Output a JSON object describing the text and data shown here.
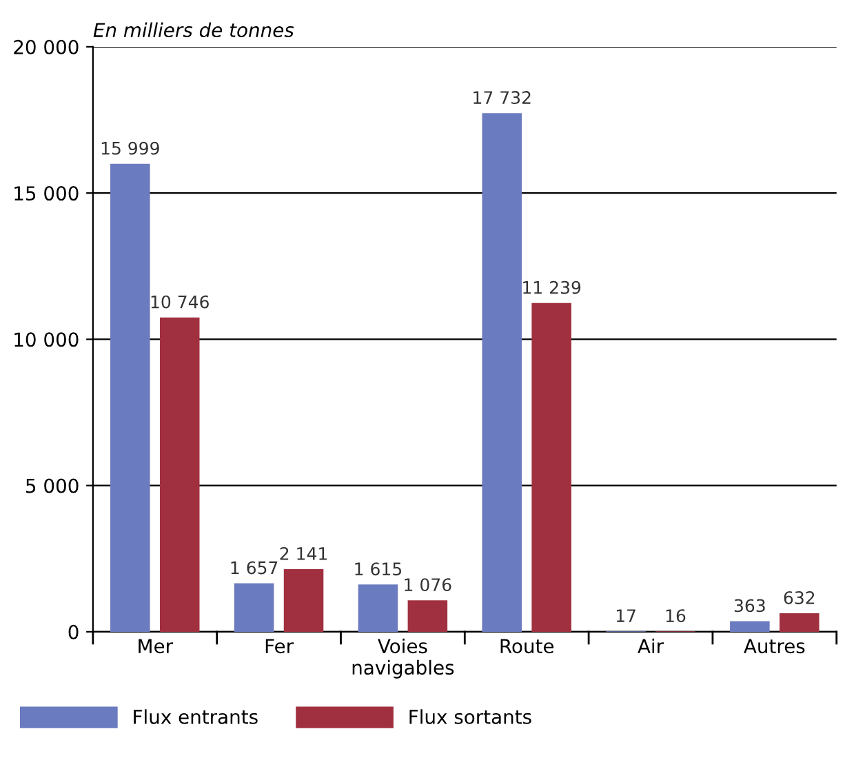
{
  "chart_data": {
    "type": "bar",
    "ylabel": "En milliers de tonnes",
    "categories": [
      "Mer",
      "Fer",
      "Voies\nnavigables",
      "Route",
      "Air",
      "Autres"
    ],
    "series": [
      {
        "name": "Flux entrants",
        "color": "#6a7bbf",
        "values": [
          15999,
          1657,
          1615,
          17732,
          17,
          363
        ],
        "value_labels": [
          "15 999",
          "1 657",
          "1 615",
          "17 732",
          "17",
          "363"
        ]
      },
      {
        "name": "Flux sortants",
        "color": "#a0303f",
        "values": [
          10746,
          2141,
          1076,
          11239,
          16,
          632
        ],
        "value_labels": [
          "10 746",
          "2 141",
          "1 076",
          "11 239",
          "16",
          "632"
        ]
      }
    ],
    "ylim": [
      0,
      20000
    ],
    "yticks": [
      {
        "value": 0,
        "label": "0"
      },
      {
        "value": 5000,
        "label": "5 000"
      },
      {
        "value": 10000,
        "label": "10 000"
      },
      {
        "value": 15000,
        "label": "15 000"
      },
      {
        "value": 20000,
        "label": "20 000"
      }
    ],
    "grid": "y",
    "legend": "bottom"
  }
}
